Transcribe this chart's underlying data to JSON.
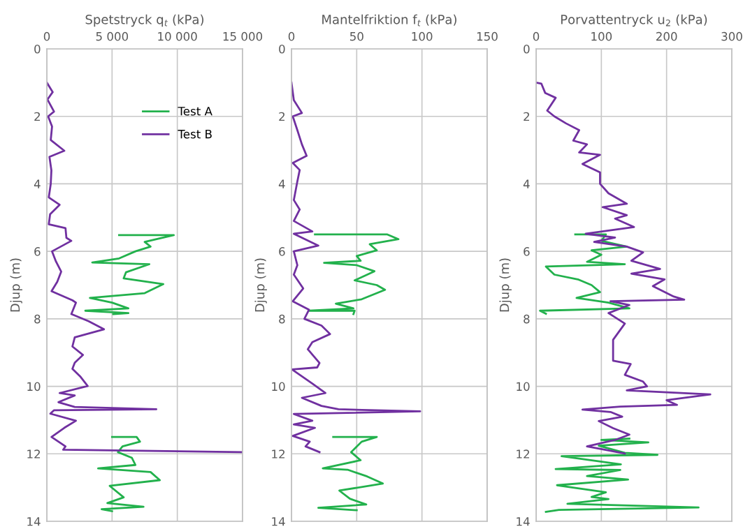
{
  "chart_data": [
    {
      "type": "line",
      "xlabel": "Spetstryck q$_{t}$ (kPa)",
      "ylabel": "Djup (m)",
      "xlim": [
        0,
        15000
      ],
      "xticks": [
        0,
        {
          "value": 5000,
          "label": "5 000"
        },
        {
          "value": 10000,
          "label": "10 000"
        },
        {
          "value": 15000,
          "label": "15 000"
        }
      ],
      "ylim": [
        14,
        0
      ],
      "yticks": [
        0,
        2,
        4,
        6,
        8,
        10,
        12,
        14
      ],
      "grid": true,
      "legend": "top right",
      "line_style": "solid",
      "marker": "none",
      "series": [
        {
          "name": "Test A",
          "color": "#22b14c",
          "x": [
            5540,
            9730,
            7500,
            7950,
            6790,
            5540,
            3480,
            7860,
            6070,
            5890,
            8930,
            7500,
            3300,
            5000,
            6250,
            2950,
            6250,
            5090,
            null,
            5000,
            6880,
            7140,
            5800,
            5450,
            6520,
            6790,
            3930,
            7950,
            8660,
            4820,
            5890,
            4640,
            7410,
            4200,
            5000
          ],
          "values": [
            5.52,
            5.52,
            5.72,
            5.86,
            6.0,
            6.21,
            6.33,
            6.38,
            6.62,
            6.8,
            6.97,
            7.24,
            7.38,
            7.52,
            7.69,
            7.76,
            7.83,
            7.86,
            null,
            11.5,
            11.5,
            11.64,
            11.78,
            11.95,
            12.12,
            12.33,
            12.43,
            12.54,
            12.78,
            12.95,
            13.29,
            13.46,
            13.57,
            13.64,
            13.7
          ]
        },
        {
          "name": "Test B",
          "color": "#7030a0",
          "x": [
            0,
            450,
            50,
            550,
            100,
            400,
            300,
            1340,
            200,
            350,
            300,
            150,
            980,
            250,
            150,
            1430,
            1500,
            1875,
            400,
            700,
            1100,
            800,
            360,
            1960,
            2230,
            1880,
            3200,
            4380,
            2140,
            1960,
            2770,
            2140,
            1960,
            2590,
            3130,
            980,
            2140,
            890,
            2140,
            8390,
            540,
            270,
            2230,
            1340,
            360,
            1430,
            1250,
            15000
          ],
          "values": [
            1.0,
            1.28,
            1.5,
            1.86,
            2.0,
            2.3,
            2.7,
            3.02,
            3.2,
            3.6,
            4.0,
            4.4,
            4.62,
            4.9,
            5.2,
            5.31,
            5.6,
            5.69,
            6.0,
            6.3,
            6.6,
            6.9,
            7.18,
            7.45,
            7.52,
            7.86,
            8.07,
            8.31,
            8.55,
            8.82,
            9.07,
            9.3,
            9.48,
            9.72,
            9.99,
            10.2,
            10.27,
            10.47,
            10.61,
            10.68,
            10.71,
            10.81,
            11.02,
            11.23,
            11.5,
            11.78,
            11.88,
            11.95
          ]
        }
      ]
    },
    {
      "type": "line",
      "xlabel": "Mantelfriktion f$_{t}$ (kPa)",
      "ylabel": "Djup (m)",
      "xlim": [
        0,
        150
      ],
      "xticks": [
        0,
        50,
        100,
        150
      ],
      "ylim": [
        14,
        0
      ],
      "yticks": [
        0,
        2,
        4,
        6,
        8,
        10,
        12,
        14
      ],
      "grid": true,
      "line_style": "solid",
      "marker": "none",
      "series": [
        {
          "color": "#22b14c",
          "x": [
            18,
            73.5,
            82,
            60,
            65.4,
            50,
            53,
            25,
            50,
            63.6,
            48.4,
            65.4,
            71.7,
            53.8,
            34,
            47.5,
            13.4,
            48.4,
            47.5,
            null,
            32,
            65.4,
            53.8,
            45.7,
            53,
            24,
            43,
            58,
            70,
            36.7,
            44.8,
            57.3,
            20.6,
            50
          ],
          "values": [
            5.5,
            5.5,
            5.64,
            5.79,
            5.97,
            6.14,
            6.28,
            6.34,
            6.41,
            6.59,
            6.86,
            7.0,
            7.14,
            7.42,
            7.55,
            7.69,
            7.76,
            7.76,
            7.86,
            null,
            11.5,
            11.5,
            11.64,
            11.95,
            12.19,
            12.43,
            12.47,
            12.67,
            12.88,
            13.09,
            13.33,
            13.5,
            13.6,
            13.67
          ]
        },
        {
          "color": "#7030a0",
          "x": [
            0,
            1.8,
            8,
            1,
            4.5,
            8,
            11.6,
            1,
            6.3,
            4.5,
            1.8,
            6.3,
            1.8,
            16,
            1.8,
            20.6,
            1.8,
            4.5,
            1.8,
            9,
            1,
            13.4,
            9.9,
            23,
            29.6,
            16,
            12.5,
            21.5,
            19.7,
            0.4,
            16,
            26,
            8,
            23,
            36,
            98.6,
            1.8,
            16,
            1.8,
            18,
            1,
            14,
            10.8,
            21.5
          ],
          "values": [
            1.0,
            1.52,
            1.9,
            2.0,
            2.41,
            2.83,
            3.17,
            3.38,
            3.59,
            3.93,
            4.48,
            4.76,
            5.1,
            5.41,
            5.48,
            5.83,
            6.0,
            6.41,
            6.69,
            7.1,
            7.48,
            7.73,
            8.0,
            8.2,
            8.45,
            8.69,
            8.9,
            9.31,
            9.44,
            9.5,
            9.92,
            10.2,
            10.34,
            10.58,
            10.68,
            10.74,
            10.82,
            11.02,
            11.13,
            11.23,
            11.47,
            11.64,
            11.78,
            11.95
          ]
        }
      ]
    },
    {
      "type": "line",
      "xlabel": "Porvattentryck u$_{2}$ (kPa)",
      "ylabel": "Djup (m)",
      "xlim": [
        0,
        300
      ],
      "xticks": [
        0,
        100,
        200,
        300
      ],
      "ylim": [
        14,
        0
      ],
      "yticks": [
        0,
        2,
        4,
        6,
        8,
        10,
        12,
        14
      ],
      "grid": true,
      "line_style": "solid",
      "marker": "none",
      "series": [
        {
          "color": "#22b14c",
          "x": [
            60,
            107,
            100,
            139,
            85,
            100,
            78,
            136,
            15,
            28,
            64,
            85,
            98,
            62,
            111,
            143,
            6,
            15,
            null,
            143,
            100,
            172,
            96,
            136,
            186,
            39,
            130,
            30,
            129,
            78,
            141,
            32,
            107,
            85,
            111,
            48,
            249,
            35,
            15
          ],
          "values": [
            5.5,
            5.5,
            5.69,
            5.86,
            5.97,
            6.1,
            6.31,
            6.38,
            6.45,
            6.69,
            6.83,
            7.0,
            7.21,
            7.38,
            7.52,
            7.69,
            7.76,
            7.85,
            null,
            11.55,
            11.59,
            11.66,
            11.76,
            11.97,
            12.03,
            12.07,
            12.31,
            12.45,
            12.48,
            12.66,
            12.76,
            12.93,
            13.14,
            13.28,
            13.34,
            13.48,
            13.59,
            13.66,
            13.72
          ]
        },
        {
          "color": "#7030a0",
          "x": [
            0,
            8,
            14,
            30,
            17,
            28,
            46,
            66,
            57,
            78,
            66,
            98,
            71,
            98,
            98,
            111,
            139,
            102,
            139,
            121,
            150,
            76,
            121,
            89,
            139,
            164,
            146,
            190,
            146,
            197,
            179,
            211,
            227,
            114,
            143,
            111,
            136,
            118,
            118,
            145,
            136,
            164,
            170,
            139,
            267,
            200,
            216,
            129,
            71,
            114,
            132,
            96,
            118,
            143,
            121,
            78,
            111,
            136
          ],
          "values": [
            1.0,
            1.03,
            1.31,
            1.45,
            1.83,
            2.0,
            2.21,
            2.41,
            2.72,
            2.83,
            3.07,
            3.14,
            3.41,
            3.66,
            4.0,
            4.28,
            4.59,
            4.69,
            4.93,
            5.03,
            5.28,
            5.48,
            5.59,
            5.72,
            5.86,
            6.03,
            6.28,
            6.52,
            6.66,
            6.83,
            7.03,
            7.34,
            7.43,
            7.48,
            7.59,
            7.83,
            8.14,
            8.62,
            9.24,
            9.34,
            9.66,
            9.86,
            10.0,
            10.12,
            10.24,
            10.41,
            10.55,
            10.6,
            10.69,
            10.76,
            10.9,
            11.03,
            11.24,
            11.43,
            11.59,
            11.78,
            11.9,
            11.99
          ]
        }
      ]
    }
  ]
}
